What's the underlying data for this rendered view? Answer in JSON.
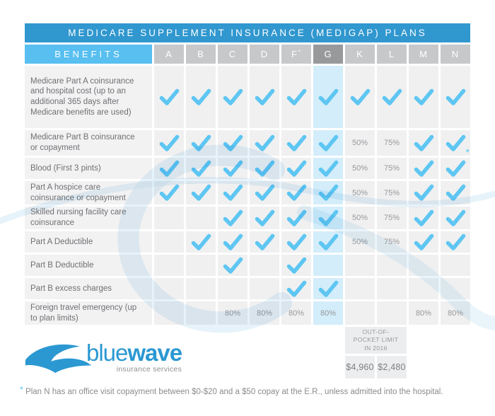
{
  "title": "MEDICARE SUPPLEMENT INSURANCE (MEDIGAP) PLANS",
  "chart_data": {
    "type": "table",
    "title": "MEDICARE SUPPLEMENT INSURANCE (MEDIGAP) PLANS",
    "row_header": "BENEFITS",
    "columns": [
      "A",
      "B",
      "C",
      "D",
      "F*",
      "G",
      "K",
      "L",
      "M",
      "N"
    ],
    "highlighted_column": "G",
    "rows": [
      {
        "label": "Medicare Part A coinsurance and hospital cost (up to an additional 365 days after Medicare benefits are used)",
        "cells": [
          "check",
          "check",
          "check",
          "check",
          "check",
          "check",
          "check",
          "check",
          "check",
          "check"
        ]
      },
      {
        "label": "Medicare Part B coinsurance or copayment",
        "cells": [
          "check",
          "check",
          "check",
          "check",
          "check",
          "check",
          "50%",
          "75%",
          "check",
          "check*"
        ]
      },
      {
        "label": "Blood (First 3 pints)",
        "cells": [
          "check",
          "check",
          "check",
          "check",
          "check",
          "check",
          "50%",
          "75%",
          "check",
          "check"
        ]
      },
      {
        "label": "Part A hospice care coinsurance or copayment",
        "cells": [
          "check",
          "check",
          "check",
          "check",
          "check",
          "check",
          "50%",
          "75%",
          "check",
          "check"
        ]
      },
      {
        "label": "Skilled nursing facility care coinsurance",
        "cells": [
          "",
          "",
          "check",
          "check",
          "check",
          "check",
          "50%",
          "75%",
          "check",
          "check"
        ]
      },
      {
        "label": "Part A Deductible",
        "cells": [
          "",
          "check",
          "check",
          "check",
          "check",
          "check",
          "50%",
          "75%",
          "check",
          "check"
        ]
      },
      {
        "label": "Part B Deductible",
        "cells": [
          "",
          "",
          "check",
          "",
          "check",
          "",
          "",
          "",
          "",
          ""
        ]
      },
      {
        "label": "Part B excess charges",
        "cells": [
          "",
          "",
          "",
          "",
          "check",
          "check",
          "",
          "",
          "",
          ""
        ]
      },
      {
        "label": "Foreign travel emergency (up to plan limits)",
        "cells": [
          "",
          "",
          "80%",
          "80%",
          "80%",
          "80%",
          "",
          "",
          "80%",
          "80%"
        ]
      }
    ],
    "out_of_pocket": {
      "label_lines": [
        "OUT-OF-",
        "POCKET LIMIT",
        "IN 2016"
      ],
      "values": [
        {
          "plan": "K",
          "amount": "$4,960"
        },
        {
          "plan": "L",
          "amount": "$2,480"
        }
      ]
    }
  },
  "logo": {
    "name_light": "blue",
    "name_bold": "wave",
    "tagline": "insurance services"
  },
  "footnote": {
    "marker": "*",
    "text": "Plan N has an office visit copayment between $0-$20 and a $50 copay at the E.R., unless admitted into the hospital."
  },
  "colors": {
    "title_bar": "#3097CF",
    "benefits_bar": "#58BFF0",
    "header_gray": "#C6C8CA",
    "header_dark_gray": "#97999B",
    "check_blue": "#5EC6F2",
    "highlight_column_bg": "#D3EDFA",
    "cell_bg": "#F0F0F1"
  }
}
